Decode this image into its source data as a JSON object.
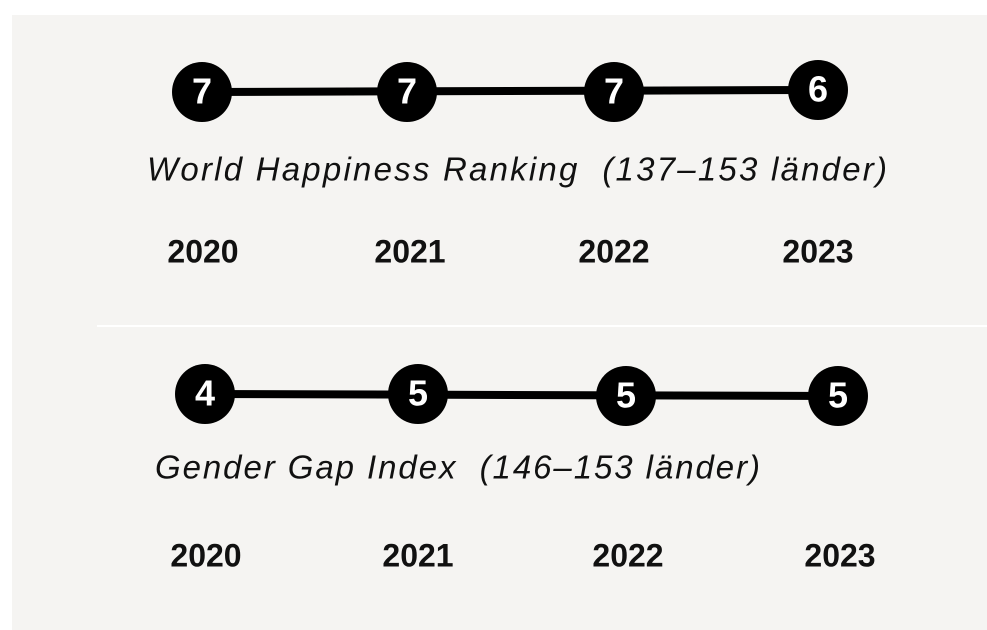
{
  "panels": [
    {
      "ranks": [
        "7",
        "7",
        "7",
        "6"
      ],
      "label": "World Happiness Ranking  (137–153 länder)",
      "years": [
        "2020",
        "2021",
        "2022",
        "2023"
      ]
    },
    {
      "ranks": [
        "4",
        "5",
        "5",
        "5"
      ],
      "label": "Gender Gap Index  (146–153 länder)",
      "years": [
        "2020",
        "2021",
        "2022",
        "2023"
      ]
    }
  ]
}
